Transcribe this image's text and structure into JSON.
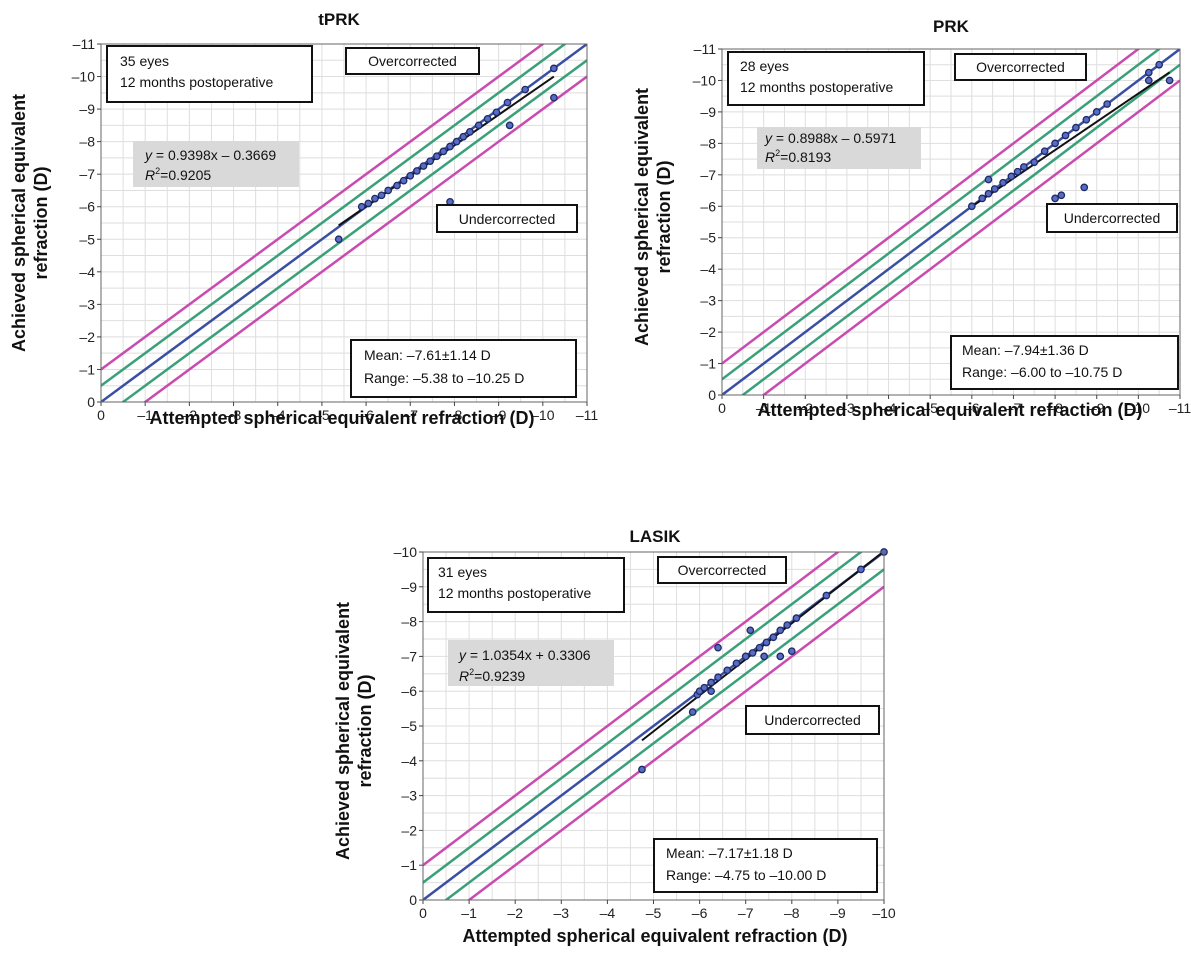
{
  "chart_data": [
    {
      "id": "tprk",
      "type": "scatter",
      "title": "tPRK",
      "xlabel": "Attempted spherical equivalent refraction (D)",
      "ylabel_lines": [
        "Achieved spherical equivalent",
        "refraction (D)"
      ],
      "xlim": [
        0,
        -11
      ],
      "ylim": [
        0,
        -11
      ],
      "x_ticks": [
        0,
        -1,
        -2,
        -3,
        -4,
        -5,
        -6,
        -7,
        -8,
        -9,
        -10,
        -11
      ],
      "y_ticks": [
        0,
        -1,
        -2,
        -3,
        -4,
        -5,
        -6,
        -7,
        -8,
        -9,
        -10,
        -11
      ],
      "x_tick_labels": [
        "0",
        "–1",
        "–2",
        "–3",
        "–4",
        "–5",
        "–6",
        "–7",
        "–8",
        "–9",
        "–10",
        "–11"
      ],
      "y_tick_labels": [
        "0",
        "–1",
        "–2",
        "–3",
        "–4",
        "–5",
        "–6",
        "–7",
        "–8",
        "–9",
        "–10",
        "–11"
      ],
      "grid": true,
      "reference_lines": [
        {
          "offset": 0,
          "color": "#3a4fa3"
        },
        {
          "offset": 0.5,
          "color": "#3aa07a"
        },
        {
          "offset": -0.5,
          "color": "#3aa07a"
        },
        {
          "offset": 1,
          "color": "#c94bb0"
        },
        {
          "offset": -1,
          "color": "#c94bb0"
        }
      ],
      "trendline": {
        "slope": 0.9398,
        "intercept": -0.3669,
        "x_range": [
          -5.38,
          -10.25
        ]
      },
      "points": [
        {
          "x": -5.38,
          "y": -5.0
        },
        {
          "x": -5.9,
          "y": -6.0
        },
        {
          "x": -6.05,
          "y": -6.1
        },
        {
          "x": -6.2,
          "y": -6.25
        },
        {
          "x": -6.35,
          "y": -6.35
        },
        {
          "x": -6.5,
          "y": -6.5
        },
        {
          "x": -6.7,
          "y": -6.65
        },
        {
          "x": -6.85,
          "y": -6.8
        },
        {
          "x": -7.0,
          "y": -6.95
        },
        {
          "x": -7.15,
          "y": -7.1
        },
        {
          "x": -7.3,
          "y": -7.25
        },
        {
          "x": -7.45,
          "y": -7.4
        },
        {
          "x": -7.6,
          "y": -7.55
        },
        {
          "x": -7.75,
          "y": -7.7
        },
        {
          "x": -7.9,
          "y": -7.85
        },
        {
          "x": -8.05,
          "y": -8.0
        },
        {
          "x": -8.2,
          "y": -8.15
        },
        {
          "x": -8.35,
          "y": -8.3
        },
        {
          "x": -8.55,
          "y": -8.5
        },
        {
          "x": -8.75,
          "y": -8.7
        },
        {
          "x": -8.95,
          "y": -8.9
        },
        {
          "x": -9.2,
          "y": -9.2
        },
        {
          "x": -9.6,
          "y": -9.6
        },
        {
          "x": -10.25,
          "y": -10.25
        },
        {
          "x": -7.9,
          "y": -6.15
        },
        {
          "x": -9.25,
          "y": -8.5
        },
        {
          "x": -10.25,
          "y": -9.35
        }
      ],
      "info_lines": [
        "35 eyes",
        "12 months postoperative"
      ],
      "equation_prefix": "y",
      "equation_rest": " = 0.9398x – 0.3669",
      "r2_prefix": "R",
      "r2_sup": "2",
      "r2_rest": "=0.9205",
      "overcorrected_label": "Overcorrected",
      "undercorrected_label": "Undercorrected",
      "mean_text": "Mean: –7.61±1.14 D",
      "range_text": "Range: –5.38 to –10.25 D"
    },
    {
      "id": "prk",
      "type": "scatter",
      "title": "PRK",
      "xlabel": "Attempted spherical equivalent refraction (D)",
      "ylabel_lines": [
        "Achieved spherical equivalent",
        "refraction (D)"
      ],
      "xlim": [
        0,
        -11
      ],
      "ylim": [
        0,
        -11
      ],
      "x_ticks": [
        0,
        -1,
        -2,
        -3,
        -4,
        -5,
        -6,
        -7,
        -8,
        -9,
        -10,
        -11
      ],
      "y_ticks": [
        0,
        -1,
        -2,
        -3,
        -4,
        -5,
        -6,
        -7,
        -8,
        -9,
        -10,
        -11
      ],
      "x_tick_labels": [
        "0",
        "–1",
        "–2",
        "–3",
        "–4",
        "–5",
        "–6",
        "–7",
        "–8",
        "–9",
        "–10",
        "–11"
      ],
      "y_tick_labels": [
        "0",
        "–1",
        "–2",
        "–3",
        "–4",
        "–5",
        "–6",
        "–7",
        "–8",
        "–9",
        "–10",
        "–11"
      ],
      "grid": true,
      "reference_lines": [
        {
          "offset": 0,
          "color": "#3a4fa3"
        },
        {
          "offset": 0.5,
          "color": "#3aa07a"
        },
        {
          "offset": -0.5,
          "color": "#3aa07a"
        },
        {
          "offset": 1,
          "color": "#c94bb0"
        },
        {
          "offset": -1,
          "color": "#c94bb0"
        }
      ],
      "trendline": {
        "slope": 0.8988,
        "intercept": -0.5971,
        "x_range": [
          -6.0,
          -10.75
        ]
      },
      "points": [
        {
          "x": -6.0,
          "y": -6.0
        },
        {
          "x": -6.25,
          "y": -6.25
        },
        {
          "x": -6.4,
          "y": -6.4
        },
        {
          "x": -6.55,
          "y": -6.55
        },
        {
          "x": -6.75,
          "y": -6.75
        },
        {
          "x": -6.95,
          "y": -6.95
        },
        {
          "x": -7.1,
          "y": -7.1
        },
        {
          "x": -7.25,
          "y": -7.25
        },
        {
          "x": -7.5,
          "y": -7.4
        },
        {
          "x": -7.75,
          "y": -7.75
        },
        {
          "x": -8.0,
          "y": -8.0
        },
        {
          "x": -8.25,
          "y": -8.25
        },
        {
          "x": -8.5,
          "y": -8.5
        },
        {
          "x": -8.75,
          "y": -8.75
        },
        {
          "x": -9.0,
          "y": -9.0
        },
        {
          "x": -9.25,
          "y": -9.25
        },
        {
          "x": -10.25,
          "y": -10.25
        },
        {
          "x": -10.5,
          "y": -10.5
        },
        {
          "x": -10.75,
          "y": -10.0
        },
        {
          "x": -10.25,
          "y": -10.0
        },
        {
          "x": -6.4,
          "y": -6.85
        },
        {
          "x": -8.0,
          "y": -6.25
        },
        {
          "x": -8.15,
          "y": -6.35
        },
        {
          "x": -8.7,
          "y": -6.6
        }
      ],
      "info_lines": [
        "28 eyes",
        "12 months postoperative"
      ],
      "equation_prefix": "y",
      "equation_rest": " = 0.8988x – 0.5971",
      "r2_prefix": "R",
      "r2_sup": "2",
      "r2_rest": "=0.8193",
      "overcorrected_label": "Overcorrected",
      "undercorrected_label": "Undercorrected",
      "mean_text": "Mean: –7.94±1.36 D",
      "range_text": "Range: –6.00 to –10.75 D"
    },
    {
      "id": "lasik",
      "type": "scatter",
      "title": "LASIK",
      "xlabel": "Attempted spherical equivalent refraction (D)",
      "ylabel_lines": [
        "Achieved spherical equivalent",
        "refraction (D)"
      ],
      "xlim": [
        0,
        -10
      ],
      "ylim": [
        0,
        -10
      ],
      "x_ticks": [
        0,
        -1,
        -2,
        -3,
        -4,
        -5,
        -6,
        -7,
        -8,
        -9,
        -10
      ],
      "y_ticks": [
        0,
        -1,
        -2,
        -3,
        -4,
        -5,
        -6,
        -7,
        -8,
        -9,
        -10
      ],
      "x_tick_labels": [
        "0",
        "–1",
        "–2",
        "–3",
        "–4",
        "–5",
        "–6",
        "–7",
        "–8",
        "–9",
        "–10"
      ],
      "y_tick_labels": [
        "0",
        "–1",
        "–2",
        "–3",
        "–4",
        "–5",
        "–6",
        "–7",
        "–8",
        "–9",
        "–10"
      ],
      "grid": true,
      "reference_lines": [
        {
          "offset": 0,
          "color": "#3a4fa3"
        },
        {
          "offset": 0.5,
          "color": "#3aa07a"
        },
        {
          "offset": -0.5,
          "color": "#3aa07a"
        },
        {
          "offset": 1,
          "color": "#c94bb0"
        },
        {
          "offset": -1,
          "color": "#c94bb0"
        }
      ],
      "trendline": {
        "slope": 1.0354,
        "intercept": 0.3306,
        "x_range": [
          -4.75,
          -10.0
        ]
      },
      "points": [
        {
          "x": -4.75,
          "y": -3.75
        },
        {
          "x": -5.85,
          "y": -5.4
        },
        {
          "x": -5.95,
          "y": -5.9
        },
        {
          "x": -6.0,
          "y": -6.0
        },
        {
          "x": -6.1,
          "y": -6.1
        },
        {
          "x": -6.25,
          "y": -6.0
        },
        {
          "x": -6.25,
          "y": -6.25
        },
        {
          "x": -6.4,
          "y": -6.4
        },
        {
          "x": -6.6,
          "y": -6.6
        },
        {
          "x": -6.8,
          "y": -6.8
        },
        {
          "x": -7.0,
          "y": -7.0
        },
        {
          "x": -7.15,
          "y": -7.1
        },
        {
          "x": -7.3,
          "y": -7.25
        },
        {
          "x": -7.45,
          "y": -7.4
        },
        {
          "x": -7.6,
          "y": -7.55
        },
        {
          "x": -7.75,
          "y": -7.75
        },
        {
          "x": -7.9,
          "y": -7.9
        },
        {
          "x": -8.1,
          "y": -8.1
        },
        {
          "x": -8.75,
          "y": -8.75
        },
        {
          "x": -9.5,
          "y": -9.5
        },
        {
          "x": -10.0,
          "y": -10.0
        },
        {
          "x": -6.4,
          "y": -7.25
        },
        {
          "x": -7.1,
          "y": -7.75
        },
        {
          "x": -7.4,
          "y": -7.0
        },
        {
          "x": -7.75,
          "y": -7.0
        },
        {
          "x": -8.0,
          "y": -7.15
        }
      ],
      "info_lines": [
        "31 eyes",
        "12 months postoperative"
      ],
      "equation_prefix": "y",
      "equation_rest": " = 1.0354x + 0.3306",
      "r2_prefix": "R",
      "r2_sup": "2",
      "r2_rest": "=0.9239",
      "overcorrected_label": "Overcorrected",
      "undercorrected_label": "Undercorrected",
      "mean_text": "Mean: –7.17±1.18 D",
      "range_text": "Range: –4.75 to –10.00 D"
    }
  ]
}
